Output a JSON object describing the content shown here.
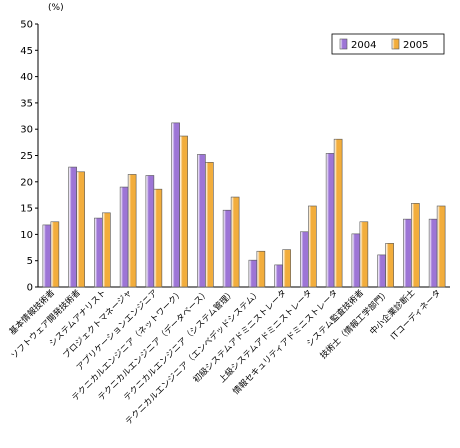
{
  "chart_data": {
    "type": "bar",
    "title": "",
    "xlabel": "",
    "ylabel": "",
    "unit": "(%)",
    "ylim": [
      0,
      50
    ],
    "yticks": [
      "0",
      "5",
      "10",
      "15",
      "20",
      "25",
      "30",
      "35",
      "40",
      "45",
      "50"
    ],
    "grid": false,
    "legend_position": "top-right",
    "categories": [
      "基本情報技術者",
      "ソフトウェア開発技術者",
      "システムアナリスト",
      "プロジェクトマネージャ",
      "アプリケーションエンジニア",
      "テクニカルエンジニア（ネットワーク）",
      "テクニカルエンジニア（データベース）",
      "テクニカルエンジニア（システム管理）",
      "テクニカルエンジニア（エンベデッドシステム）",
      "初級システムアドミニストレータ",
      "上級システムアドミニストレータ",
      "情報セキュリティアドミニストレータ",
      "システム監査技術者",
      "技術士（情報工学部門）",
      "中小企業診断士",
      "ITコーディネータ"
    ],
    "series": [
      {
        "name": "2004",
        "color": "#9d75d6",
        "values": [
          11.8,
          22.8,
          13.1,
          19.0,
          21.2,
          31.2,
          25.2,
          14.6,
          5.1,
          4.2,
          10.5,
          25.4,
          10.1,
          6.1,
          12.9,
          12.9
        ]
      },
      {
        "name": "2005",
        "color": "#f2ad3c",
        "values": [
          12.4,
          21.9,
          14.1,
          21.4,
          18.6,
          28.7,
          23.7,
          17.1,
          6.8,
          7.1,
          15.4,
          28.1,
          12.4,
          8.3,
          15.9,
          15.4
        ]
      }
    ]
  }
}
